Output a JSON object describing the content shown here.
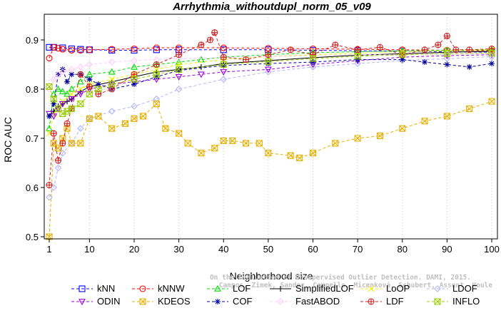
{
  "chart_data": {
    "type": "line",
    "title": "Arrhythmia_withoutdupl_norm_05_v09",
    "xlabel": "Neighborhood size",
    "ylabel": "ROC AUC",
    "xlim": [
      1,
      100
    ],
    "ylim": [
      0.5,
      0.95
    ],
    "xticks": [
      "1",
      "10",
      "20",
      "30",
      "40",
      "50",
      "60",
      "70",
      "80",
      "90",
      "100"
    ],
    "yticks": [
      "0.5",
      "0.6",
      "0.7",
      "0.8",
      "0.9"
    ],
    "grid": "vertical dotted",
    "legend_position": "bottom",
    "watermark": [
      "Campos, Zimek, Sander, Campello, Micenková, Schubert, Assent, Houle",
      "On the Evaluation of Unsupervised Outlier Detection. DAMI, 2015."
    ],
    "series": [
      {
        "name": "kNN",
        "color": "#0000ff",
        "marker": "square",
        "dash": "4,3",
        "x": [
          1,
          2,
          4,
          6,
          8,
          10,
          15,
          20,
          25,
          30,
          40,
          50,
          60,
          70,
          80,
          90,
          100
        ],
        "values": [
          0.885,
          0.885,
          0.884,
          0.882,
          0.881,
          0.88,
          0.879,
          0.879,
          0.88,
          0.88,
          0.88,
          0.88,
          0.879,
          0.878,
          0.877,
          0.876,
          0.875
        ]
      },
      {
        "name": "kNNW",
        "color": "#ff0000",
        "marker": "circle",
        "dash": "4,3",
        "x": [
          1,
          2,
          3,
          4,
          6,
          8,
          10,
          15,
          20,
          25,
          30,
          40,
          50,
          60,
          70,
          80,
          90,
          100
        ],
        "values": [
          0.863,
          0.885,
          0.883,
          0.881,
          0.879,
          0.879,
          0.88,
          0.881,
          0.882,
          0.884,
          0.884,
          0.884,
          0.883,
          0.882,
          0.881,
          0.88,
          0.879,
          0.878
        ]
      },
      {
        "name": "LOF",
        "color": "#00dd00",
        "marker": "triangle",
        "dash": "4,3",
        "x": [
          1,
          2,
          3,
          4,
          5,
          6,
          8,
          10,
          15,
          20,
          25,
          30,
          35,
          40,
          50,
          60,
          70,
          80,
          90,
          100
        ],
        "values": [
          0.72,
          0.79,
          0.8,
          0.795,
          0.79,
          0.8,
          0.815,
          0.83,
          0.835,
          0.845,
          0.85,
          0.855,
          0.86,
          0.865,
          0.87,
          0.874,
          0.876,
          0.878,
          0.879,
          0.88
        ]
      },
      {
        "name": "SimplifiedLOF",
        "color": "#000000",
        "marker": "plus",
        "dash": "",
        "x": [
          1,
          2,
          3,
          4,
          5,
          6,
          8,
          10,
          15,
          20,
          25,
          30,
          35,
          40,
          50,
          60,
          70,
          80,
          90,
          100
        ],
        "values": [
          0.745,
          0.755,
          0.765,
          0.77,
          0.775,
          0.78,
          0.795,
          0.805,
          0.815,
          0.825,
          0.835,
          0.84,
          0.845,
          0.852,
          0.858,
          0.864,
          0.869,
          0.872,
          0.875,
          0.877
        ]
      },
      {
        "name": "LoOP",
        "color": "#eeee00",
        "marker": "x",
        "dash": "4,3",
        "x": [
          1,
          2,
          3,
          4,
          6,
          8,
          10,
          15,
          20,
          25,
          30,
          40,
          50,
          60,
          70,
          80,
          90,
          100
        ],
        "values": [
          0.71,
          0.75,
          0.76,
          0.775,
          0.79,
          0.8,
          0.81,
          0.82,
          0.83,
          0.84,
          0.85,
          0.86,
          0.866,
          0.87,
          0.873,
          0.876,
          0.878,
          0.88
        ]
      },
      {
        "name": "LDOF",
        "color": "#b3b3ff",
        "marker": "diamond",
        "dash": "4,3",
        "x": [
          1,
          2,
          3,
          4,
          6,
          8,
          10,
          15,
          20,
          25,
          30,
          40,
          50,
          60,
          70,
          80,
          90,
          100
        ],
        "values": [
          0.58,
          0.6,
          0.64,
          0.67,
          0.69,
          0.72,
          0.74,
          0.755,
          0.765,
          0.78,
          0.8,
          0.82,
          0.835,
          0.845,
          0.852,
          0.858,
          0.862,
          0.866
        ]
      },
      {
        "name": "ODIN",
        "color": "#9900dd",
        "marker": "triangle-down",
        "dash": "4,3",
        "x": [
          1,
          2,
          3,
          4,
          6,
          8,
          10,
          15,
          20,
          25,
          30,
          35,
          40,
          50,
          60,
          70,
          80,
          90,
          100
        ],
        "values": [
          0.75,
          0.745,
          0.76,
          0.77,
          0.78,
          0.79,
          0.8,
          0.81,
          0.815,
          0.82,
          0.825,
          0.83,
          0.835,
          0.84,
          0.85,
          0.858,
          0.865,
          0.868,
          0.87
        ]
      },
      {
        "name": "KDEOS",
        "color": "#e6b000",
        "marker": "square-x",
        "dash": "4,3",
        "x": [
          1,
          2,
          3,
          4,
          5,
          6,
          8,
          10,
          12,
          15,
          18,
          20,
          22,
          25,
          27,
          30,
          32,
          35,
          38,
          40,
          42,
          45,
          48,
          50,
          55,
          57,
          60,
          65,
          70,
          75,
          80,
          85,
          90,
          95,
          100
        ],
        "values": [
          0.5,
          0.69,
          0.68,
          0.7,
          0.72,
          0.69,
          0.69,
          0.74,
          0.745,
          0.72,
          0.73,
          0.74,
          0.745,
          0.77,
          0.72,
          0.71,
          0.69,
          0.67,
          0.68,
          0.695,
          0.695,
          0.69,
          0.69,
          0.67,
          0.665,
          0.66,
          0.67,
          0.69,
          0.7,
          0.705,
          0.72,
          0.735,
          0.745,
          0.76,
          0.775
        ]
      },
      {
        "name": "COF",
        "color": "#000099",
        "marker": "star",
        "dash": "4,3",
        "x": [
          1,
          2,
          3,
          4,
          5,
          6,
          8,
          10,
          12,
          15,
          20,
          25,
          30,
          40,
          50,
          60,
          70,
          80,
          85,
          90,
          95,
          100
        ],
        "values": [
          0.745,
          0.77,
          0.83,
          0.84,
          0.815,
          0.83,
          0.83,
          0.82,
          0.81,
          0.8,
          0.81,
          0.825,
          0.838,
          0.848,
          0.852,
          0.855,
          0.86,
          0.86,
          0.855,
          0.85,
          0.845,
          0.852
        ]
      },
      {
        "name": "FastABOD",
        "color": "#ffccff",
        "marker": "diamond",
        "dash": "4,3",
        "x": [
          1,
          2,
          3,
          4,
          6,
          8,
          10,
          15,
          20,
          25,
          30,
          40,
          50,
          60,
          70,
          80,
          90,
          100
        ],
        "values": [
          0.8,
          0.82,
          0.83,
          0.835,
          0.84,
          0.845,
          0.85,
          0.855,
          0.858,
          0.86,
          0.862,
          0.864,
          0.866,
          0.868,
          0.87,
          0.87,
          0.871,
          0.872
        ]
      },
      {
        "name": "LDF",
        "color": "#cc2222",
        "marker": "circle-plus",
        "dash": "4,3",
        "x": [
          1,
          2,
          3,
          4,
          5,
          6,
          8,
          10,
          12,
          15,
          20,
          25,
          30,
          35,
          37,
          38,
          40,
          45,
          50,
          55,
          60,
          65,
          70,
          75,
          80,
          85,
          88,
          90,
          92,
          95,
          100
        ],
        "values": [
          0.605,
          0.71,
          0.655,
          0.69,
          0.73,
          0.76,
          0.83,
          0.805,
          0.79,
          0.8,
          0.83,
          0.85,
          0.87,
          0.89,
          0.9,
          0.915,
          0.865,
          0.86,
          0.87,
          0.88,
          0.87,
          0.89,
          0.88,
          0.885,
          0.87,
          0.88,
          0.89,
          0.908,
          0.88,
          0.88,
          0.882
        ]
      },
      {
        "name": "INFLO",
        "color": "#99cc00",
        "marker": "square-x",
        "dash": "4,3",
        "x": [
          1,
          2,
          3,
          4,
          5,
          6,
          8,
          10,
          12,
          15,
          20,
          25,
          30,
          40,
          50,
          60,
          70,
          80,
          90,
          100
        ],
        "values": [
          0.805,
          0.78,
          0.76,
          0.75,
          0.755,
          0.76,
          0.77,
          0.79,
          0.8,
          0.81,
          0.82,
          0.83,
          0.84,
          0.85,
          0.856,
          0.862,
          0.867,
          0.87,
          0.872,
          0.873
        ]
      }
    ]
  },
  "legend_order": [
    "kNN",
    "kNNW",
    "LOF",
    "SimplifiedLOF",
    "LoOP",
    "LDOF",
    "ODIN",
    "KDEOS",
    "COF",
    "FastABOD",
    "LDF",
    "INFLO"
  ]
}
